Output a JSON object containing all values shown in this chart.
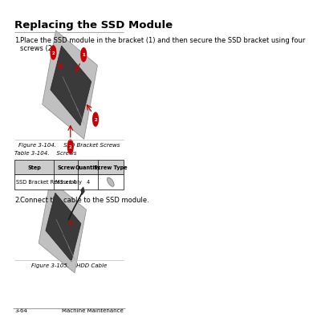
{
  "title": "Replacing the SSD Module",
  "bg_color": "#ffffff",
  "title_fontsize": 9.5,
  "body_fontsize": 6.0,
  "small_fontsize": 5.0,
  "step1_text": "Place the SSD module in the bracket (1) and then secure the SSD bracket using four\nscrews (2).",
  "fig1_caption": "Figure 3-104.    SSD Bracket Screws",
  "table_title": "Table 3-104.    Screws",
  "table_headers": [
    "Step",
    "Screw",
    "Quantity",
    "Screw Type"
  ],
  "table_row": [
    "SSD Bracket Reassembly",
    "M3 x L4",
    "4",
    "screw"
  ],
  "step2_text": "Connect the cable to the SSD module.",
  "fig2_caption": "Figure 3-105.    HDD Cable",
  "footer_left": "3-64",
  "footer_right": "Machine Maintenance",
  "title_underline_color": "#aaaaaa",
  "table_border_color": "#000000",
  "table_header_bg": "#cccccc",
  "table_cell_bg": "#ffffff",
  "text_color": "#000000",
  "red_color": "#cc0000"
}
